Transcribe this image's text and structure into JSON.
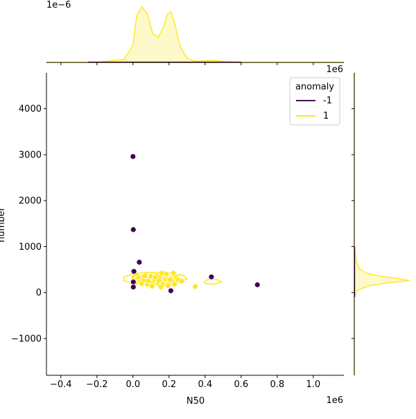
{
  "chart_data": {
    "type": "scatter",
    "subtype": "jointplot",
    "xlabel": "N50",
    "ylabel": "number",
    "x_multiplier": "1e6",
    "y_multiplier": "",
    "top_marginal_multiplier": "1e−6",
    "right_marginal_multiplier": "1e6",
    "xlim": [
      -0.48,
      1.17
    ],
    "ylim": [
      -1800,
      4780
    ],
    "x_ticks": [
      -0.4,
      -0.2,
      0.0,
      0.2,
      0.4,
      0.6,
      0.8,
      1.0
    ],
    "x_tick_labels": [
      "−0.4",
      "−0.2",
      "0.0",
      "0.2",
      "0.4",
      "0.6",
      "0.8",
      "1.0"
    ],
    "y_ticks": [
      -1000,
      0,
      1000,
      2000,
      3000,
      4000
    ],
    "y_tick_labels": [
      "−1000",
      "0",
      "1000",
      "2000",
      "3000",
      "4000"
    ],
    "legend": {
      "title": "anomaly",
      "placement": "top-right",
      "entries": [
        {
          "label": "-1",
          "color": "#440154"
        },
        {
          "label": "1",
          "color": "#fde725"
        }
      ]
    },
    "grid": false,
    "series": [
      {
        "name": "-1",
        "color": "#440154",
        "points": [
          [
            0.0,
            2960
          ],
          [
            0.002,
            1370
          ],
          [
            0.035,
            660
          ],
          [
            0.005,
            460
          ],
          [
            0.002,
            230
          ],
          [
            0.002,
            120
          ],
          [
            0.21,
            40
          ],
          [
            0.435,
            340
          ],
          [
            0.69,
            170
          ]
        ]
      },
      {
        "name": "1",
        "color": "#fde725",
        "points": [
          [
            0.005,
            330
          ],
          [
            0.02,
            290
          ],
          [
            0.03,
            380
          ],
          [
            0.04,
            240
          ],
          [
            0.05,
            330
          ],
          [
            0.06,
            270
          ],
          [
            0.07,
            400
          ],
          [
            0.08,
            180
          ],
          [
            0.09,
            300
          ],
          [
            0.1,
            350
          ],
          [
            0.11,
            220
          ],
          [
            0.12,
            280
          ],
          [
            0.13,
            370
          ],
          [
            0.14,
            200
          ],
          [
            0.15,
            330
          ],
          [
            0.16,
            420
          ],
          [
            0.17,
            250
          ],
          [
            0.18,
            300
          ],
          [
            0.19,
            360
          ],
          [
            0.2,
            210
          ],
          [
            0.21,
            310
          ],
          [
            0.22,
            260
          ],
          [
            0.225,
            420
          ],
          [
            0.23,
            180
          ],
          [
            0.24,
            330
          ],
          [
            0.25,
            280
          ],
          [
            0.27,
            250
          ],
          [
            0.345,
            130
          ],
          [
            0.012,
            210
          ],
          [
            0.028,
            330
          ],
          [
            0.048,
            190
          ],
          [
            0.065,
            360
          ],
          [
            0.085,
            250
          ],
          [
            0.105,
            140
          ],
          [
            0.125,
            330
          ],
          [
            0.145,
            260
          ],
          [
            0.165,
            180
          ],
          [
            0.185,
            400
          ],
          [
            0.205,
            280
          ],
          [
            0.018,
            400
          ],
          [
            0.155,
            120
          ],
          [
            0.195,
            150
          ]
        ]
      }
    ],
    "kde_contours_class_1": [
      [
        [
          -0.05,
          330
        ],
        [
          0.0,
          420
        ],
        [
          0.1,
          440
        ],
        [
          0.2,
          430
        ],
        [
          0.28,
          370
        ],
        [
          0.3,
          300
        ],
        [
          0.26,
          220
        ],
        [
          0.18,
          180
        ],
        [
          0.08,
          170
        ],
        [
          0.0,
          200
        ],
        [
          -0.05,
          260
        ]
      ],
      [
        [
          0.01,
          320
        ],
        [
          0.05,
          380
        ],
        [
          0.15,
          390
        ],
        [
          0.24,
          350
        ],
        [
          0.25,
          290
        ],
        [
          0.18,
          240
        ],
        [
          0.08,
          230
        ],
        [
          0.02,
          260
        ]
      ],
      [
        [
          0.395,
          240
        ],
        [
          0.42,
          290
        ],
        [
          0.47,
          280
        ],
        [
          0.49,
          230
        ],
        [
          0.45,
          180
        ],
        [
          0.4,
          200
        ]
      ]
    ],
    "top_marginal_kde": {
      "x": [
        -0.48,
        -0.2,
        -0.05,
        0.0,
        0.02,
        0.05,
        0.08,
        0.11,
        0.14,
        0.17,
        0.19,
        0.21,
        0.23,
        0.26,
        0.3,
        0.35,
        0.4,
        0.45,
        0.5,
        0.6,
        1.17
      ],
      "density": [
        0.0,
        0.0,
        0.15,
        0.8,
        2.2,
        2.65,
        2.3,
        1.35,
        1.2,
        1.7,
        2.3,
        2.4,
        1.9,
        0.8,
        0.2,
        0.05,
        0.08,
        0.1,
        0.04,
        0.0,
        0.0
      ],
      "density_max": 2.7
    },
    "right_marginal_kde": {
      "y": [
        -1800,
        -100,
        50,
        150,
        220,
        260,
        300,
        350,
        420,
        520,
        700,
        1000,
        4780
      ],
      "density": [
        0.0,
        0.0,
        0.05,
        0.25,
        0.6,
        0.9,
        0.75,
        0.45,
        0.2,
        0.08,
        0.03,
        0.0,
        0.0
      ],
      "density_max": 0.9
    }
  }
}
